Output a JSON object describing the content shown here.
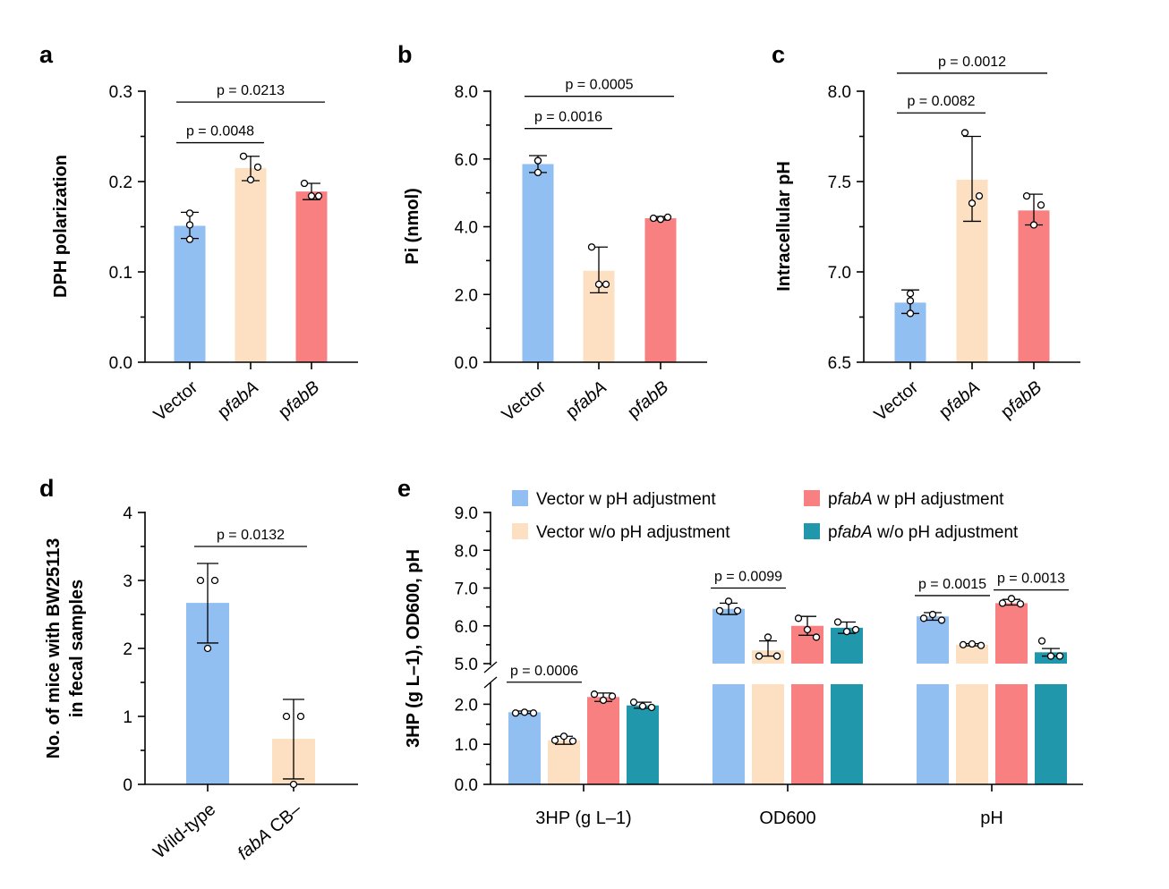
{
  "colors": {
    "vector": "#92BFF2",
    "pfabA": "#FCE0C1",
    "pfabB": "#F88080",
    "fabA_ph": "#F88080",
    "fabA_noph": "#2097AB",
    "vector_noph": "#FCE0C1"
  },
  "chart_data": [
    {
      "id": "a",
      "panel_label": "a",
      "type": "bar",
      "ylabel": "DPH polarization",
      "ylim": [
        0,
        0.3
      ],
      "yticks": [
        0,
        0.1,
        0.2,
        0.3
      ],
      "ytick_labels": [
        "0.0",
        "0.1",
        "0.2",
        "0.3"
      ],
      "categories": [
        "Vector",
        "pfabA",
        "pfabB"
      ],
      "category_display": [
        [
          "Vector",
          ""
        ],
        [
          "p",
          "fabA"
        ],
        [
          "p",
          "fabB"
        ]
      ],
      "bar_colors": [
        "#92BFF2",
        "#FCE0C1",
        "#F88080"
      ],
      "values": [
        0.151,
        0.215,
        0.189
      ],
      "error": [
        [
          0.137,
          0.166
        ],
        [
          0.201,
          0.228
        ],
        [
          0.18,
          0.198
        ]
      ],
      "points": [
        [
          0.165,
          0.136,
          0.152
        ],
        [
          0.228,
          0.216,
          0.202
        ],
        [
          0.198,
          0.184,
          0.184
        ]
      ],
      "brackets": [
        {
          "from": 0,
          "to": 1,
          "y": 0.243,
          "label": "p = 0.0048"
        },
        {
          "from": 0,
          "to": 2,
          "y": 0.288,
          "label": "p = 0.0213"
        }
      ]
    },
    {
      "id": "b",
      "panel_label": "b",
      "type": "bar",
      "ylabel": "Pi (nmol)",
      "ylim": [
        0,
        8
      ],
      "yticks": [
        0,
        2,
        4,
        6,
        8
      ],
      "ytick_labels": [
        "0.0",
        "2.0",
        "4.0",
        "6.0",
        "8.0"
      ],
      "categories": [
        "Vector",
        "pfabA",
        "pfabB"
      ],
      "category_display": [
        [
          "Vector",
          ""
        ],
        [
          "p",
          "fabA"
        ],
        [
          "p",
          "fabB"
        ]
      ],
      "bar_colors": [
        "#92BFF2",
        "#FCE0C1",
        "#F88080"
      ],
      "values": [
        5.85,
        2.7,
        4.25
      ],
      "error": [
        [
          5.6,
          6.1
        ],
        [
          2.05,
          3.4
        ],
        [
          4.2,
          4.3
        ]
      ],
      "points": [
        [
          5.95,
          5.6,
          5.95
        ],
        [
          3.4,
          2.3,
          2.3
        ],
        [
          4.25,
          4.28,
          4.22
        ]
      ],
      "brackets": [
        {
          "from": 0,
          "to": 1,
          "y": 6.9,
          "label": "p = 0.0016"
        },
        {
          "from": 0,
          "to": 2,
          "y": 7.85,
          "label": "p = 0.0005"
        }
      ]
    },
    {
      "id": "c",
      "panel_label": "c",
      "type": "bar",
      "ylabel": "Intracellular pH",
      "ylim": [
        6.5,
        8.0
      ],
      "yticks": [
        6.5,
        7.0,
        7.5,
        8.0
      ],
      "ytick_labels": [
        "6.5",
        "7.0",
        "7.5",
        "8.0"
      ],
      "categories": [
        "Vector",
        "pfabA",
        "pfabB"
      ],
      "category_display": [
        [
          "Vector",
          ""
        ],
        [
          "p",
          "fabA"
        ],
        [
          "p",
          "fabB"
        ]
      ],
      "bar_colors": [
        "#92BFF2",
        "#FCE0C1",
        "#F88080"
      ],
      "values": [
        6.83,
        7.51,
        7.34
      ],
      "error": [
        [
          6.77,
          6.9
        ],
        [
          7.28,
          7.75
        ],
        [
          7.26,
          7.43
        ]
      ],
      "points": [
        [
          6.88,
          6.77,
          6.84
        ],
        [
          7.77,
          7.42,
          7.38
        ],
        [
          7.42,
          7.37,
          7.26
        ]
      ],
      "brackets": [
        {
          "from": 0,
          "to": 1,
          "y": 7.88,
          "label": "p = 0.0082"
        },
        {
          "from": 0,
          "to": 2,
          "y": 8.1,
          "label": "p = 0.0012"
        }
      ]
    },
    {
      "id": "d",
      "panel_label": "d",
      "type": "bar",
      "ylabel": [
        "No. of mice with BW25113",
        "in fecal samples"
      ],
      "ylim": [
        0,
        4
      ],
      "yticks": [
        0,
        1,
        2,
        3,
        4
      ],
      "ytick_labels": [
        "0",
        "1",
        "2",
        "3",
        "4"
      ],
      "categories": [
        "Wild-type",
        "fabA CB–"
      ],
      "category_display": [
        [
          "Wild-type",
          "",
          ""
        ],
        [
          "",
          "fabA",
          " CB–"
        ]
      ],
      "bar_colors": [
        "#92BFF2",
        "#FCE0C1"
      ],
      "values": [
        2.67,
        0.67
      ],
      "error": [
        [
          2.08,
          3.25
        ],
        [
          0.08,
          1.25
        ]
      ],
      "points": [
        [
          3.0,
          3.0,
          2.0
        ],
        [
          1.0,
          1.0,
          0.0
        ]
      ],
      "brackets": [
        {
          "from": 0,
          "to": 1,
          "y": 3.5,
          "label": "p = 0.0132"
        }
      ]
    },
    {
      "id": "e",
      "panel_label": "e",
      "type": "bar",
      "ylabel": "3HP (g L–1), OD600, pH",
      "broken_axis": {
        "lower": [
          0,
          2.5
        ],
        "upper": [
          5.0,
          9.0
        ]
      },
      "ytick_labels_lower": [
        "0.0",
        "1.0",
        "2.0"
      ],
      "ytick_labels_upper": [
        "5.0",
        "6.0",
        "7.0",
        "8.0",
        "9.0"
      ],
      "groups": [
        "3HP (g L–1)",
        "OD600",
        "pH"
      ],
      "series": [
        {
          "name": "Vector w pH adjustment",
          "color": "#92BFF2",
          "values": [
            1.8,
            6.45,
            6.25
          ],
          "error": [
            [
              1.77,
              1.83
            ],
            [
              6.3,
              6.6
            ],
            [
              6.15,
              6.35
            ]
          ],
          "points": [
            [
              1.78,
              1.8,
              1.78
            ],
            [
              6.4,
              6.65,
              6.4
            ],
            [
              6.2,
              6.3,
              6.15
            ]
          ]
        },
        {
          "name": "Vector w/o pH adjustment",
          "color": "#FCE0C1",
          "values": [
            1.1,
            5.35,
            5.5
          ],
          "error": [
            [
              1.0,
              1.2
            ],
            [
              5.2,
              5.6
            ],
            [
              5.47,
              5.53
            ]
          ],
          "points": [
            [
              1.1,
              1.2,
              1.08
            ],
            [
              5.2,
              5.7,
              5.2
            ],
            [
              5.5,
              5.52,
              5.48
            ]
          ]
        },
        {
          "name": "pfabA w pH adjustment",
          "color": "#F88080",
          "values": [
            2.18,
            6.0,
            6.6
          ],
          "error": [
            [
              2.07,
              2.28
            ],
            [
              5.75,
              6.25
            ],
            [
              6.55,
              6.7
            ]
          ],
          "points": [
            [
              2.25,
              2.1,
              2.2
            ],
            [
              6.2,
              5.9,
              5.7
            ],
            [
              6.6,
              6.72,
              6.58
            ]
          ]
        },
        {
          "name": "pfabA w/o pH adjustment",
          "color": "#2097AB",
          "values": [
            1.97,
            5.95,
            5.3
          ],
          "error": [
            [
              1.9,
              2.05
            ],
            [
              5.8,
              6.1
            ],
            [
              5.2,
              5.4
            ]
          ],
          "points": [
            [
              2.05,
              1.95,
              1.92
            ],
            [
              6.1,
              5.85,
              5.9
            ],
            [
              5.6,
              5.2,
              5.2
            ]
          ]
        }
      ],
      "legend": [
        {
          "prefix": "",
          "italic": "",
          "rest": "Vector w pH adjustment"
        },
        {
          "prefix": "",
          "italic": "",
          "rest": "Vector w/o pH adjustment"
        },
        {
          "prefix": "p",
          "italic": "fabA",
          "rest": " w pH adjustment"
        },
        {
          "prefix": "p",
          "italic": "fabA",
          "rest": " w/o pH adjustment"
        }
      ],
      "brackets": [
        {
          "group": 0,
          "from": 0,
          "to": 1,
          "y": 2.55,
          "label": "p = 0.0006"
        },
        {
          "group": 1,
          "from": 0,
          "to": 1,
          "y": 7.0,
          "label": "p = 0.0099"
        },
        {
          "group": 2,
          "from": 0,
          "to": 1,
          "y": 6.8,
          "label": "p = 0.0015"
        },
        {
          "group": 2,
          "from": 2,
          "to": 3,
          "y": 6.95,
          "label": "p = 0.0013"
        }
      ]
    }
  ]
}
